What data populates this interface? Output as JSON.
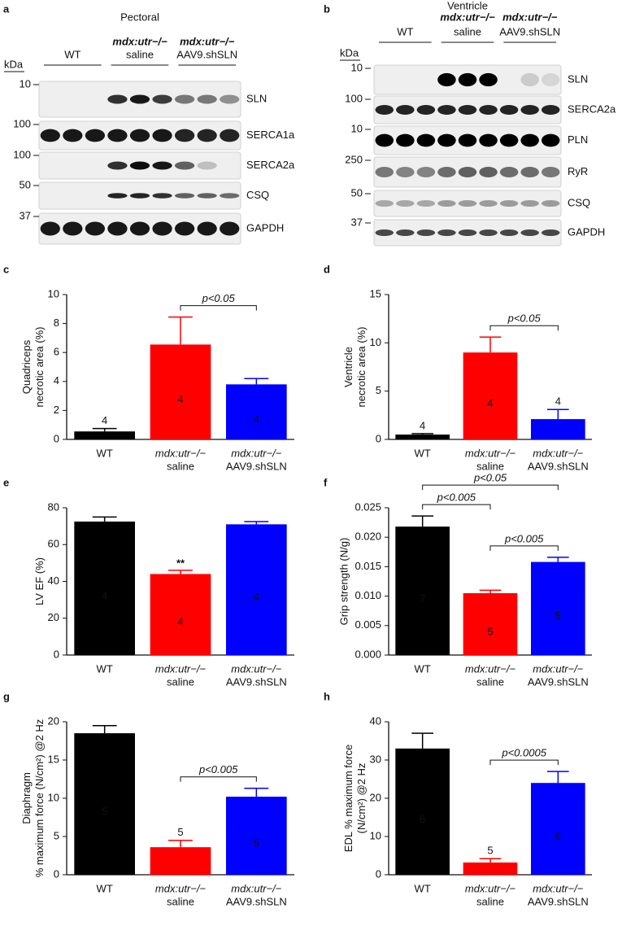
{
  "blots": [
    {
      "panel": "a",
      "title": "Pectoral",
      "unit": "kDa",
      "groups": [
        [
          "WT"
        ],
        [
          "mdx:utr−/−",
          "saline"
        ],
        [
          "mdx:utr−/−",
          "AAV9.shSLN"
        ]
      ],
      "rows": [
        {
          "marker": "10",
          "protein": "SLN"
        },
        {
          "marker": "100",
          "protein": "SERCA1a"
        },
        {
          "marker": "100",
          "protein": "SERCA2a"
        },
        {
          "marker": "50",
          "protein": "CSQ"
        },
        {
          "marker": "37",
          "protein": "GAPDH"
        }
      ]
    },
    {
      "panel": "b",
      "title": "Ventricle",
      "unit": "kDa",
      "groups": [
        [
          "WT"
        ],
        [
          "mdx:utr−/−",
          "saline"
        ],
        [
          "mdx:utr−/−",
          "AAV9.shSLN"
        ]
      ],
      "rows": [
        {
          "marker": "10",
          "protein": "SLN"
        },
        {
          "marker": "100",
          "protein": "SERCA2a"
        },
        {
          "marker": "10",
          "protein": "PLN"
        },
        {
          "marker": "250",
          "protein": "RyR"
        },
        {
          "marker": "50",
          "protein": "CSQ"
        },
        {
          "marker": "37",
          "protein": "GAPDH"
        }
      ]
    }
  ],
  "chart_data": [
    {
      "type": "bar",
      "panel": "c",
      "ylabel": [
        "Quadriceps",
        "necrotic area (%)"
      ],
      "categories": [
        [
          "WT"
        ],
        [
          "mdx:utr−/−",
          "saline"
        ],
        [
          "mdx:utr−/−",
          "AAV9.shSLN"
        ]
      ],
      "values": [
        0.55,
        6.55,
        3.8
      ],
      "errors": [
        0.2,
        1.9,
        0.4
      ],
      "n_labels": [
        4,
        4,
        4
      ],
      "colors": [
        "#000000",
        "#ff0000",
        "#0000ff"
      ],
      "ylim": [
        0,
        10
      ],
      "yticks": [
        0,
        2,
        4,
        6,
        8,
        10
      ],
      "brackets": [
        {
          "from": 1,
          "to": 2,
          "label": "p<0.05"
        }
      ]
    },
    {
      "type": "bar",
      "panel": "d",
      "ylabel": [
        "Ventricle",
        "necrotic area (%)"
      ],
      "categories": [
        [
          "WT"
        ],
        [
          "mdx:utr−/−",
          "saline"
        ],
        [
          "mdx:utr−/−",
          "AAV9.shSLN"
        ]
      ],
      "values": [
        0.5,
        9.0,
        2.1
      ],
      "errors": [
        0.1,
        1.6,
        1.0
      ],
      "n_labels": [
        4,
        4,
        4
      ],
      "colors": [
        "#000000",
        "#ff0000",
        "#0000ff"
      ],
      "ylim": [
        0,
        15
      ],
      "yticks": [
        0,
        5,
        10,
        15
      ],
      "brackets": [
        {
          "from": 1,
          "to": 2,
          "label": "p<0.05"
        }
      ]
    },
    {
      "type": "bar",
      "panel": "e",
      "ylabel": [
        "LV EF (%)"
      ],
      "categories": [
        [
          "WT"
        ],
        [
          "mdx:utr−/−",
          "saline"
        ],
        [
          "mdx:utr−/−",
          "AAV9.shSLN"
        ]
      ],
      "values": [
        72.5,
        44,
        71
      ],
      "errors": [
        2.5,
        2,
        1.5
      ],
      "n_labels": [
        4,
        4,
        4
      ],
      "colors": [
        "#000000",
        "#ff0000",
        "#0000ff"
      ],
      "ylim": [
        0,
        80
      ],
      "yticks": [
        0,
        20,
        40,
        60,
        80
      ],
      "annotations": [
        {
          "category": 1,
          "text": "**"
        }
      ]
    },
    {
      "type": "bar",
      "panel": "f",
      "ylabel": [
        "Grip strength (N/g)"
      ],
      "categories": [
        [
          "WT"
        ],
        [
          "mdx:utr−/−",
          "saline"
        ],
        [
          "mdx:utr−/−",
          "AAV9.shSLN"
        ]
      ],
      "values": [
        0.0218,
        0.0105,
        0.0158
      ],
      "errors": [
        0.0018,
        0.0005,
        0.0008
      ],
      "n_labels": [
        7,
        5,
        5
      ],
      "colors": [
        "#000000",
        "#ff0000",
        "#0000ff"
      ],
      "ylim": [
        0,
        0.025
      ],
      "yticks": [
        {
          "value": 0,
          "label": "0.000"
        },
        0.005,
        {
          "value": 0.01,
          "label": "0.010"
        },
        0.015,
        {
          "value": 0.02,
          "label": "0.020"
        },
        0.025
      ],
      "brackets": [
        {
          "from": 0,
          "to": 1,
          "label": "p<0.005"
        },
        {
          "from": 0,
          "to": 2,
          "label": "p<0.05"
        },
        {
          "from": 1,
          "to": 2,
          "label": "p<0.005"
        }
      ]
    },
    {
      "type": "bar",
      "panel": "g",
      "ylabel": [
        "Diaphragm",
        "% maximum force (N/cm²) @2 Hz"
      ],
      "categories": [
        [
          "WT"
        ],
        [
          "mdx:utr−/−",
          "saline"
        ],
        [
          "mdx:utr−/−",
          "AAV9.shSLN"
        ]
      ],
      "values": [
        18.5,
        3.6,
        10.2
      ],
      "errors": [
        1.0,
        0.9,
        1.1
      ],
      "n_labels": [
        5,
        5,
        5
      ],
      "colors": [
        "#000000",
        "#ff0000",
        "#0000ff"
      ],
      "ylim": [
        0,
        20
      ],
      "yticks": [
        0,
        5,
        10,
        15,
        20
      ],
      "brackets": [
        {
          "from": 1,
          "to": 2,
          "label": "p<0.005"
        }
      ]
    },
    {
      "type": "bar",
      "panel": "h",
      "ylabel": [
        "EDL % maximum force",
        "(N/cm²) @2 Hz"
      ],
      "categories": [
        [
          "WT"
        ],
        [
          "mdx:utr−/−",
          "saline"
        ],
        [
          "mdx:utr−/−",
          "AAV9.shSLN"
        ]
      ],
      "values": [
        33,
        3.2,
        24
      ],
      "errors": [
        4,
        1,
        3
      ],
      "n_labels": [
        6,
        5,
        6
      ],
      "colors": [
        "#000000",
        "#ff0000",
        "#0000ff"
      ],
      "ylim": [
        0,
        40
      ],
      "yticks": [
        0,
        10,
        20,
        30,
        40
      ],
      "brackets": [
        {
          "from": 1,
          "to": 2,
          "label": "p<0.0005"
        }
      ]
    }
  ]
}
